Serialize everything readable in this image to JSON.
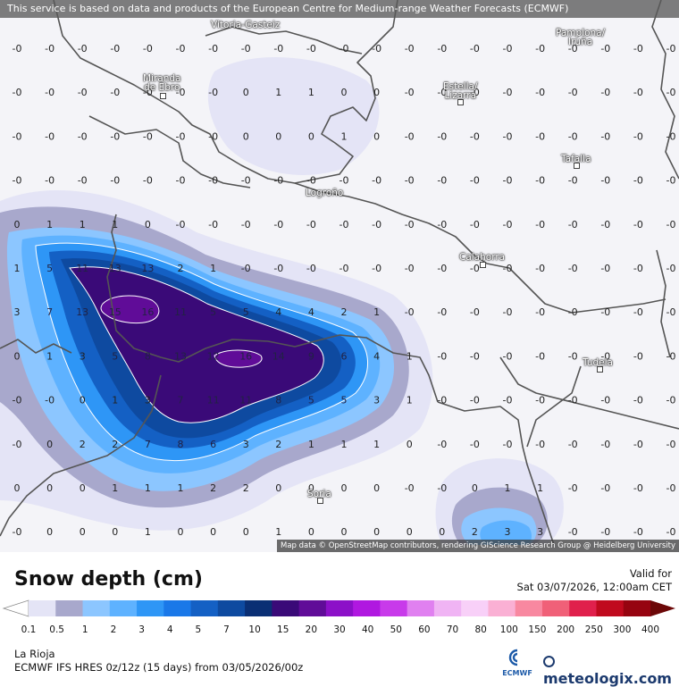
{
  "banner_text": "This service is based on data and products of the European Centre for Medium-range Weather Forecasts (ECMWF)",
  "attribution": "Map data © OpenStreetMap contributors, rendering GIScience Research Group @ Heidelberg University",
  "cities": [
    {
      "id": "vitoria",
      "label": "Vitoria-Gasteiz"
    },
    {
      "id": "pamplona",
      "label": "Pamplona/\nIruña"
    },
    {
      "id": "miranda",
      "label": "Miranda\nde Ebro"
    },
    {
      "id": "estella",
      "label": "Estella/\nLizarra"
    },
    {
      "id": "tafalla",
      "label": "Tafalla"
    },
    {
      "id": "logrono",
      "label": "Logroño"
    },
    {
      "id": "calahorra",
      "label": "Calahorra"
    },
    {
      "id": "tudela",
      "label": "Tudela"
    },
    {
      "id": "soria",
      "label": "Soria"
    }
  ],
  "grid_values": [
    [
      "-0",
      "-0",
      "-0",
      "-0",
      "-0",
      "-0",
      "-0",
      "-0",
      "-0",
      "-0",
      "-0",
      "-0",
      "-0",
      "-0",
      "-0",
      "-0",
      "-0",
      "-0",
      "-0",
      "-0",
      "-0"
    ],
    [
      "-0",
      "-0",
      "-0",
      "-0",
      "-0",
      "-0",
      "-0",
      "0",
      "1",
      "1",
      "0",
      "0",
      "-0",
      "-0",
      "-0",
      "-0",
      "-0",
      "-0",
      "-0",
      "-0",
      "-0"
    ],
    [
      "-0",
      "-0",
      "-0",
      "-0",
      "-0",
      "-0",
      "-0",
      "0",
      "0",
      "0",
      "1",
      "0",
      "-0",
      "-0",
      "-0",
      "-0",
      "-0",
      "-0",
      "-0",
      "-0",
      "-0"
    ],
    [
      "-0",
      "-0",
      "-0",
      "-0",
      "-0",
      "-0",
      "-0",
      "-0",
      "-0",
      "-0",
      "-0",
      "-0",
      "-0",
      "-0",
      "-0",
      "-0",
      "-0",
      "-0",
      "-0",
      "-0",
      "-0"
    ],
    [
      "0",
      "1",
      "1",
      "1",
      "0",
      "-0",
      "-0",
      "-0",
      "-0",
      "-0",
      "-0",
      "-0",
      "-0",
      "-0",
      "-0",
      "-0",
      "-0",
      "-0",
      "-0",
      "-0",
      "-0"
    ],
    [
      "1",
      "5",
      "11",
      "13",
      "13",
      "2",
      "1",
      "-0",
      "-0",
      "-0",
      "-0",
      "-0",
      "-0",
      "-0",
      "-0",
      "-0",
      "-0",
      "-0",
      "-0",
      "-0",
      "-0"
    ],
    [
      "3",
      "7",
      "13",
      "15",
      "16",
      "11",
      "5",
      "5",
      "4",
      "4",
      "2",
      "1",
      "-0",
      "-0",
      "-0",
      "-0",
      "-0",
      "-0",
      "-0",
      "-0",
      "-0"
    ],
    [
      "0",
      "1",
      "3",
      "5",
      "8",
      "13",
      "12",
      "16",
      "14",
      "9",
      "6",
      "4",
      "1",
      "-0",
      "-0",
      "-0",
      "-0",
      "-0",
      "-0",
      "-0",
      "-0"
    ],
    [
      "-0",
      "-0",
      "0",
      "1",
      "3",
      "7",
      "11",
      "11",
      "8",
      "5",
      "5",
      "3",
      "1",
      "-0",
      "-0",
      "-0",
      "-0",
      "-0",
      "-0",
      "-0",
      "-0"
    ],
    [
      "-0",
      "0",
      "2",
      "2",
      "7",
      "8",
      "6",
      "3",
      "2",
      "1",
      "1",
      "1",
      "0",
      "-0",
      "-0",
      "-0",
      "-0",
      "-0",
      "-0",
      "-0",
      "-0"
    ],
    [
      "0",
      "0",
      "0",
      "1",
      "1",
      "1",
      "2",
      "2",
      "0",
      "0",
      "0",
      "0",
      "-0",
      "-0",
      "0",
      "1",
      "1",
      "-0",
      "-0",
      "-0",
      "-0"
    ],
    [
      "-0",
      "0",
      "0",
      "0",
      "1",
      "0",
      "0",
      "0",
      "1",
      "0",
      "0",
      "0",
      "0",
      "0",
      "2",
      "3",
      "3",
      "-0",
      "-0",
      "-0",
      "-0"
    ]
  ],
  "title": "Snow depth (cm)",
  "valid_label": "Valid for",
  "valid_time": "Sat 03/07/2026, 12:00am CET",
  "legend": {
    "ticks": [
      "0.1",
      "0.5",
      "1",
      "2",
      "3",
      "4",
      "5",
      "7",
      "10",
      "15",
      "20",
      "30",
      "40",
      "50",
      "60",
      "70",
      "80",
      "100",
      "150",
      "200",
      "250",
      "300",
      "400"
    ],
    "colors": [
      "#e4e4f6",
      "#a8a8cc",
      "#8cc6ff",
      "#5eb2ff",
      "#2e96f6",
      "#1a78e8",
      "#1460c4",
      "#0e4aa0",
      "#0a2f74",
      "#3a0a78",
      "#600c98",
      "#8c10c8",
      "#b018e0",
      "#c83aea",
      "#e080f0",
      "#f0b4f4",
      "#f8d0f8",
      "#fab0d4",
      "#f888a0",
      "#f06078",
      "#e0204c",
      "#c00a1e",
      "#960410",
      "#6c0808"
    ]
  },
  "region": "La Rioja",
  "model": "ECMWF IFS HRES 0z/12z (15 days) from  03/05/2026/00z",
  "ecmwf_label": "ECMWF",
  "brand": "meteologix.com",
  "colors": {
    "contour": "#ffffff",
    "border": "#555555"
  }
}
